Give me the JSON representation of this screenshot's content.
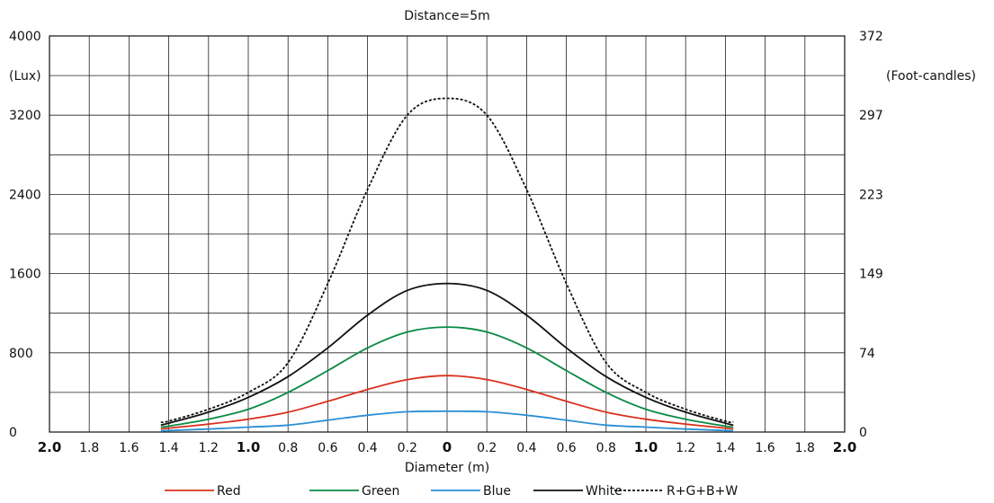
{
  "chart_data": {
    "type": "line",
    "title": "Distance=5m",
    "xlabel": "Diameter (m)",
    "ylabel_left": "(Lux)",
    "ylabel_right": "(Foot-candles)",
    "x_ticks": [
      -2.0,
      -1.8,
      -1.6,
      -1.4,
      -1.2,
      -1.0,
      -0.8,
      -0.6,
      -0.4,
      -0.2,
      0,
      0.2,
      0.4,
      0.6,
      0.8,
      1.0,
      1.2,
      1.4,
      1.6,
      1.8,
      2.0
    ],
    "x_tick_labels": [
      "2.0",
      "1.8",
      "1.6",
      "1.4",
      "1.2",
      "1.0",
      "0.8",
      "0.6",
      "0.4",
      "0.2",
      "0",
      "0.2",
      "0.4",
      "0.6",
      "0.8",
      "1.0",
      "1.2",
      "1.4",
      "1.6",
      "1.8",
      "2.0"
    ],
    "x_tick_bold": [
      "2.0",
      "1.0",
      "0"
    ],
    "xlim": [
      -2.0,
      2.0
    ],
    "ylim": [
      0,
      4000
    ],
    "y_left_ticks": [
      0,
      800,
      1600,
      2400,
      3200,
      4000
    ],
    "y_left_tick_labels": [
      "0",
      "800",
      "1600",
      "2400",
      "3200",
      "4000"
    ],
    "y_right_tick_values": [
      0,
      800,
      1600,
      2400,
      3200,
      4000
    ],
    "y_right_tick_labels": [
      "0",
      "74",
      "149",
      "223",
      "297",
      "372"
    ],
    "y_grid_step": 400,
    "x_grid_step": 0.2,
    "grid": true,
    "legend_position": "bottom-center",
    "x": [
      -1.44,
      -1.4,
      -1.2,
      -1.0,
      -0.8,
      -0.6,
      -0.4,
      -0.2,
      0,
      0.2,
      0.4,
      0.6,
      0.8,
      1.0,
      1.2,
      1.4,
      1.44
    ],
    "series": [
      {
        "name": "Red",
        "color": "#d9301e",
        "dash": "solid",
        "values": [
          30,
          40,
          80,
          130,
          200,
          310,
          430,
          530,
          570,
          530,
          430,
          310,
          200,
          130,
          80,
          40,
          30
        ]
      },
      {
        "name": "Green",
        "color": "#0a8a45",
        "dash": "solid",
        "values": [
          50,
          60,
          130,
          230,
          400,
          620,
          850,
          1010,
          1060,
          1010,
          850,
          620,
          400,
          230,
          130,
          60,
          50
        ]
      },
      {
        "name": "Blue",
        "color": "#2b8fd4",
        "dash": "solid",
        "values": [
          10,
          15,
          30,
          50,
          70,
          120,
          170,
          205,
          210,
          205,
          170,
          120,
          70,
          50,
          30,
          15,
          10
        ]
      },
      {
        "name": "White",
        "color": "#111111",
        "dash": "solid",
        "values": [
          70,
          90,
          200,
          350,
          560,
          850,
          1180,
          1430,
          1500,
          1430,
          1180,
          850,
          560,
          350,
          200,
          90,
          70
        ]
      },
      {
        "name": "R+G+B+W",
        "color": "#111111",
        "dash": "dashed",
        "values": [
          100,
          110,
          230,
          400,
          700,
          1500,
          2450,
          3200,
          3370,
          3200,
          2450,
          1500,
          700,
          400,
          230,
          110,
          100
        ]
      }
    ]
  }
}
